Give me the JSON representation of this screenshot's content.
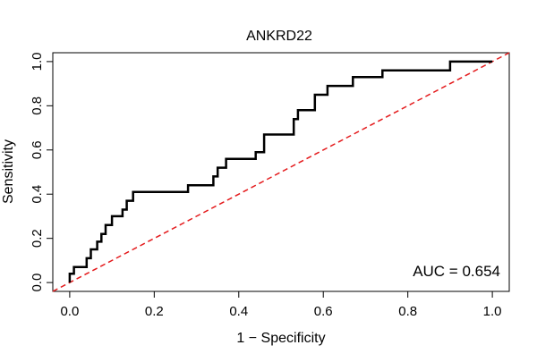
{
  "chart_data": {
    "type": "line",
    "title": "ANKRD22",
    "xlabel": "1 − Specificity",
    "ylabel": "Sensitivity",
    "xlim": [
      -0.04,
      1.04
    ],
    "ylim": [
      -0.04,
      1.04
    ],
    "xticks": [
      0.0,
      0.2,
      0.4,
      0.6,
      0.8,
      1.0
    ],
    "xtick_labels": [
      "0.0",
      "0.2",
      "0.4",
      "0.6",
      "0.8",
      "1.0"
    ],
    "yticks": [
      0.0,
      0.2,
      0.4,
      0.6,
      0.8,
      1.0
    ],
    "ytick_labels": [
      "0.0",
      "0.2",
      "0.4",
      "0.6",
      "0.8",
      "1.0"
    ],
    "grid": false,
    "annotation": "AUC = 0.654",
    "series": [
      {
        "name": "ROC",
        "color": "#000000",
        "x": [
          0.0,
          0.0,
          0.01,
          0.01,
          0.04,
          0.04,
          0.05,
          0.05,
          0.065,
          0.065,
          0.075,
          0.075,
          0.085,
          0.085,
          0.1,
          0.1,
          0.125,
          0.125,
          0.135,
          0.135,
          0.15,
          0.15,
          0.18,
          0.18,
          0.28,
          0.28,
          0.34,
          0.34,
          0.35,
          0.35,
          0.37,
          0.37,
          0.44,
          0.44,
          0.46,
          0.46,
          0.53,
          0.53,
          0.54,
          0.54,
          0.58,
          0.58,
          0.6,
          0.6,
          0.61,
          0.61,
          0.67,
          0.67,
          0.74,
          0.74,
          0.9,
          0.9,
          1.0
        ],
        "y": [
          0.0,
          0.04,
          0.04,
          0.07,
          0.07,
          0.11,
          0.11,
          0.15,
          0.15,
          0.185,
          0.185,
          0.22,
          0.22,
          0.26,
          0.26,
          0.3,
          0.3,
          0.33,
          0.33,
          0.37,
          0.37,
          0.41,
          0.41,
          0.41,
          0.41,
          0.44,
          0.44,
          0.48,
          0.48,
          0.52,
          0.52,
          0.56,
          0.56,
          0.59,
          0.59,
          0.67,
          0.67,
          0.74,
          0.74,
          0.78,
          0.78,
          0.85,
          0.85,
          0.85,
          0.85,
          0.89,
          0.89,
          0.93,
          0.93,
          0.96,
          0.96,
          1.0,
          1.0
        ]
      },
      {
        "name": "Reference diagonal",
        "color": "#e41a1c",
        "dashed": true,
        "x": [
          -0.04,
          1.04
        ],
        "y": [
          -0.04,
          1.04
        ]
      }
    ]
  }
}
